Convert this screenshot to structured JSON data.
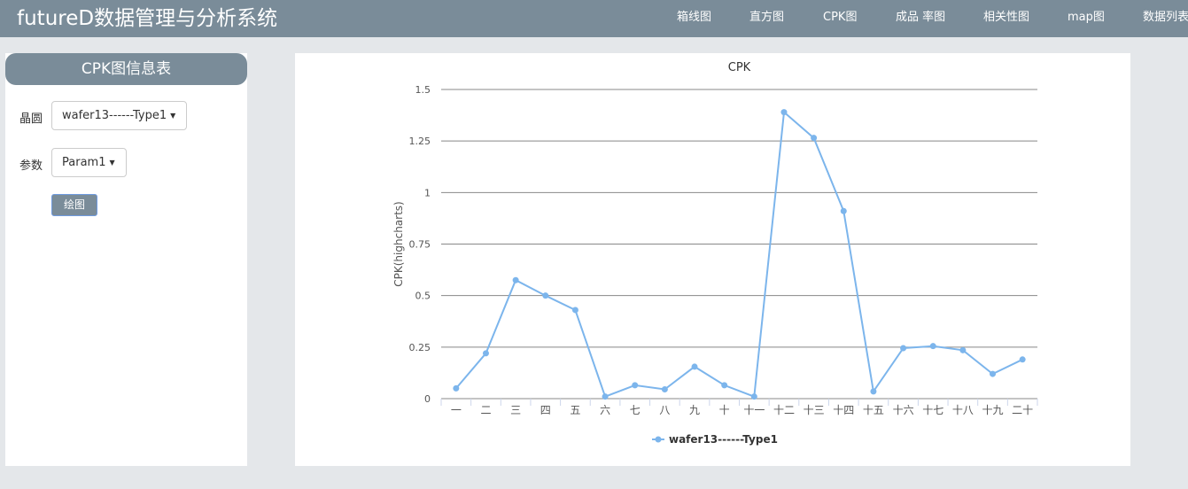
{
  "app": {
    "title": "futureD数据管理与分析系统"
  },
  "nav": {
    "items": [
      {
        "label": "箱线图"
      },
      {
        "label": "直方图"
      },
      {
        "label": "CPK图"
      },
      {
        "label": "成品 率图"
      },
      {
        "label": "相关性图"
      },
      {
        "label": "map图"
      },
      {
        "label": "数据列表"
      }
    ]
  },
  "panel": {
    "title": "CPK图信息表",
    "wafer_label": "晶圆",
    "wafer_value": "wafer13------Type1",
    "param_label": "参数",
    "param_value": "Param1",
    "draw_button": "绘图"
  },
  "chart_data": {
    "type": "line",
    "title": "CPK",
    "xlabel": "",
    "ylabel": "CPK(highcharts)",
    "categories": [
      "一",
      "二",
      "三",
      "四",
      "五",
      "六",
      "七",
      "八",
      "九",
      "十",
      "十一",
      "十二",
      "十三",
      "十四",
      "十五",
      "十六",
      "十七",
      "十八",
      "十九",
      "二十"
    ],
    "ylim": [
      0,
      1.5
    ],
    "yticks": [
      "0",
      "0.25",
      "0.5",
      "0.75",
      "1",
      "1.25",
      "1.5"
    ],
    "series": [
      {
        "name": "wafer13------Type1",
        "color": "#7cb5ec",
        "values": [
          0.05,
          0.22,
          0.575,
          0.5,
          0.43,
          0.01,
          0.065,
          0.045,
          0.155,
          0.065,
          0.01,
          1.39,
          1.265,
          0.91,
          0.035,
          0.245,
          0.255,
          0.235,
          0.12,
          0.19
        ]
      }
    ],
    "grid": true,
    "legend": "bottom-center"
  }
}
